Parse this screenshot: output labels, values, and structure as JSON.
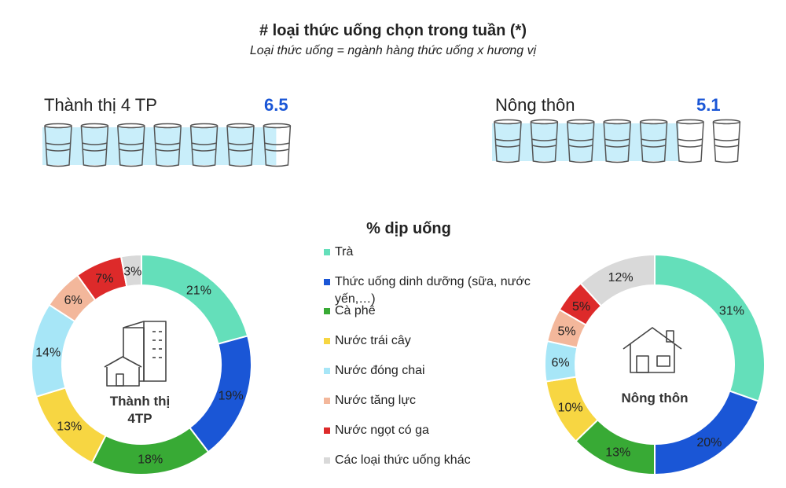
{
  "title": "# loại thức uống chọn trong tuần (*)",
  "subtitle": "Loại thức uống = ngành hàng thức uống x hương vị",
  "section_title": "% dịp uống",
  "colors": {
    "highlight": "#1a56d6",
    "cup_fill": "#c9eefa",
    "categories": [
      "#64dfba",
      "#1a56d6",
      "#38aa35",
      "#f7d642",
      "#a7e6f7",
      "#f3b79b",
      "#dd2a2a",
      "#d9d9d9"
    ]
  },
  "legend": [
    "Trà",
    "Thức uống dinh dưỡng (sữa, nước yến,…)",
    "Cà phê",
    "Nước trái cây",
    "Nước đóng chai",
    "Nước tăng lực",
    "Nước ngọt có ga",
    "Các loại thức uống khác"
  ],
  "chart_data": [
    {
      "type": "bar",
      "title": "# loại thức uống chọn trong tuần (*)",
      "subtitle": "Loại thức uống = ngành hàng thức uống x hương vị",
      "categories": [
        "Thành thị 4 TP",
        "Nông thôn"
      ],
      "values": [
        6.5,
        5.1
      ],
      "value_labels": [
        "6.5",
        "5.1"
      ],
      "max": 7,
      "icon": "glass-icon"
    },
    {
      "type": "pie",
      "title": "% dịp uống",
      "center_label": "Thành thị 4TP",
      "center_lines": [
        "Thành thị",
        "4TP"
      ],
      "labels": [
        "Trà",
        "Thức uống dinh dưỡng (sữa, nước yến,…)",
        "Cà phê",
        "Nước trái cây",
        "Nước đóng chai",
        "Nước tăng lực",
        "Nước ngọt có ga",
        "Các loại thức uống khác"
      ],
      "values": [
        21,
        19,
        18,
        13,
        14,
        6,
        7,
        3
      ],
      "value_labels": [
        "21%",
        "19%",
        "18%",
        "13%",
        "14%",
        "6%",
        "7%",
        "3%"
      ],
      "icon": "city-buildings-icon"
    },
    {
      "type": "pie",
      "title": "% dịp uống",
      "center_label": "Nông thôn",
      "center_lines": [
        "Nông thôn"
      ],
      "labels": [
        "Trà",
        "Thức uống dinh dưỡng (sữa, nước yến,…)",
        "Cà phê",
        "Nước trái cây",
        "Nước đóng chai",
        "Nước tăng lực",
        "Nước ngọt có ga",
        "Các loại thức uống khác"
      ],
      "values": [
        31,
        20,
        13,
        10,
        6,
        5,
        5,
        12
      ],
      "value_labels": [
        "31%",
        "20%",
        "13%",
        "10%",
        "6%",
        "5%",
        "5%",
        "12%"
      ],
      "icon": "house-icon"
    }
  ]
}
